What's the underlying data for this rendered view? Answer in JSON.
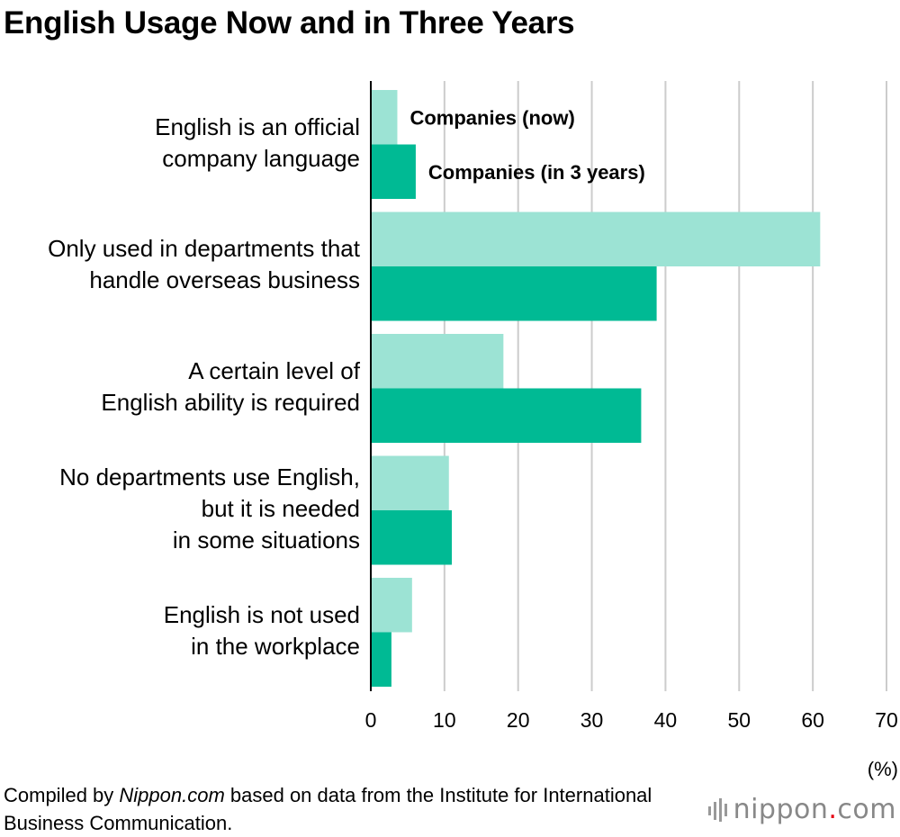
{
  "title": "English Usage Now and in Three Years",
  "unit_label": "(%)",
  "source": {
    "prefix": "Compiled by ",
    "site": "Nippon.com",
    "suffix": " based on data from the Institute for International Business Communication."
  },
  "logo": {
    "text_before": "nippon",
    "dot": ".",
    "text_after": "com"
  },
  "colors": {
    "now": "#9ce3d4",
    "future": "#00ba94",
    "grid": "#cccccc",
    "axis": "#000000"
  },
  "chart_data": {
    "type": "bar",
    "orientation": "horizontal",
    "categories": [
      [
        "English is an official",
        "company language"
      ],
      [
        "Only used in departments that",
        "handle overseas business"
      ],
      [
        "A certain level of",
        "English ability is required"
      ],
      [
        "No departments use English,",
        "but it is needed",
        "in some situations"
      ],
      [
        "English is not used",
        "in the workplace"
      ]
    ],
    "series": [
      {
        "name": "Companies (now)",
        "values": [
          3.6,
          61.0,
          18.0,
          10.6,
          5.6
        ]
      },
      {
        "name": "Companies (in 3 years)",
        "values": [
          6.1,
          38.8,
          36.7,
          11.0,
          2.8
        ]
      }
    ],
    "xlim": [
      0,
      70
    ],
    "xticks": [
      0,
      10,
      20,
      30,
      40,
      50,
      60,
      70
    ],
    "grid": true,
    "legend": "inline-top"
  }
}
